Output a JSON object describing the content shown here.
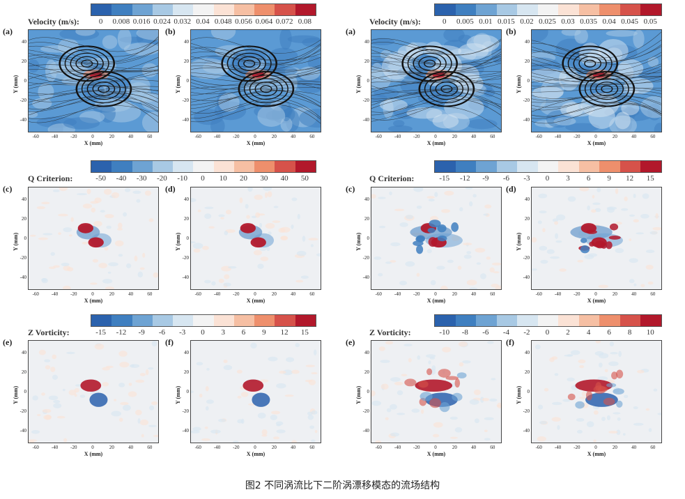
{
  "figure": {
    "caption": "图2  不同涡流比下二阶涡漂移模态的流场结构",
    "axis_x_label": "X (mm)",
    "axis_y_label": "Y (mm)"
  },
  "colors": {
    "scale": [
      "#2b62ad",
      "#3f7fc0",
      "#6ea3d3",
      "#a8c9e4",
      "#d7e6f1",
      "#f3f3f3",
      "#fbe2d5",
      "#f6bfa3",
      "#ee8f6c",
      "#d6524a",
      "#b2182b"
    ],
    "background_blue": "#5b9ad4",
    "neutral_bg": "#eef0f3"
  },
  "groups": [
    {
      "id": "left",
      "colorbars": [
        {
          "label": "Velocity (m/s):",
          "ticks": [
            "0",
            "0.008",
            "0.016",
            "0.024",
            "0.032",
            "0.04",
            "0.048",
            "0.056",
            "0.064",
            "0.072",
            "0.08"
          ]
        },
        {
          "label": "Q Criterion:",
          "ticks": [
            "-50",
            "-40",
            "-30",
            "-20",
            "-10",
            "0",
            "10",
            "20",
            "30",
            "40",
            "50"
          ]
        },
        {
          "label": "Z Vorticity:",
          "ticks": [
            "-15",
            "-12",
            "-9",
            "-6",
            "-3",
            "0",
            "3",
            "6",
            "9",
            "12",
            "15"
          ]
        }
      ],
      "panels": [
        {
          "tag": "(a)",
          "kind": "velocity",
          "yticks": [
            "40",
            "20",
            "0",
            "-20",
            "-40"
          ],
          "xticks": [
            "-60",
            "-40",
            "-20",
            "0",
            "20",
            "40",
            "60"
          ]
        },
        {
          "tag": "(b)",
          "kind": "velocity",
          "yticks": [
            "40",
            "20",
            "0",
            "-20",
            "-40"
          ],
          "xticks": [
            "-60",
            "-40",
            "-20",
            "0",
            "20",
            "40",
            "60"
          ]
        },
        {
          "tag": "(c)",
          "kind": "q",
          "yticks": [
            "40",
            "20",
            "0",
            "-20",
            "-40"
          ],
          "xticks": [
            "-60",
            "-40",
            "-20",
            "0",
            "20",
            "40",
            "60"
          ]
        },
        {
          "tag": "(d)",
          "kind": "q",
          "yticks": [
            "40",
            "20",
            "0",
            "-20",
            "-40"
          ],
          "xticks": [
            "-60",
            "-40",
            "-20",
            "0",
            "20",
            "40",
            "60"
          ]
        },
        {
          "tag": "(e)",
          "kind": "vort",
          "yticks": [
            "40",
            "20",
            "0",
            "-20",
            "-40"
          ],
          "xticks": [
            "-60",
            "-40",
            "-20",
            "0",
            "20",
            "40",
            "60"
          ]
        },
        {
          "tag": "(f)",
          "kind": "vort",
          "yticks": [
            "40",
            "20",
            "0",
            "-20",
            "-40"
          ],
          "xticks": [
            "-60",
            "-40",
            "-20",
            "0",
            "20",
            "40",
            "60"
          ]
        }
      ]
    },
    {
      "id": "right",
      "colorbars": [
        {
          "label": "Velocity (m/s):",
          "ticks": [
            "0",
            "0.005",
            "0.01",
            "0.015",
            "0.02",
            "0.025",
            "0.03",
            "0.035",
            "0.04",
            "0.045",
            "0.05"
          ]
        },
        {
          "label": "Q Criterion:",
          "ticks": [
            "-15",
            "-12",
            "-9",
            "-6",
            "-3",
            "0",
            "3",
            "6",
            "9",
            "12",
            "15"
          ]
        },
        {
          "label": "Z Vorticity:",
          "ticks": [
            "-10",
            "-8",
            "-6",
            "-4",
            "-2",
            "0",
            "2",
            "4",
            "6",
            "8",
            "10"
          ]
        }
      ],
      "panels": [
        {
          "tag": "(a)",
          "kind": "velocity",
          "yticks": [
            "40",
            "20",
            "0",
            "-20",
            "-40"
          ],
          "xticks": [
            "-60",
            "-40",
            "-20",
            "0",
            "20",
            "40",
            "60"
          ]
        },
        {
          "tag": "(b)",
          "kind": "velocity",
          "yticks": [
            "40",
            "20",
            "0",
            "-20",
            "-40"
          ],
          "xticks": [
            "-60",
            "-40",
            "-20",
            "0",
            "20",
            "40",
            "60"
          ]
        },
        {
          "tag": "(c)",
          "kind": "q",
          "yticks": [
            "40",
            "20",
            "0",
            "-20",
            "-40"
          ],
          "xticks": [
            "-60",
            "-40",
            "-20",
            "0",
            "20",
            "40",
            "60"
          ]
        },
        {
          "tag": "(d)",
          "kind": "q",
          "yticks": [
            "40",
            "20",
            "0",
            "-20",
            "-40"
          ],
          "xticks": [
            "-60",
            "-40",
            "-20",
            "0",
            "20",
            "40",
            "60"
          ]
        },
        {
          "tag": "(e)",
          "kind": "vort",
          "yticks": [
            "40",
            "20",
            "0",
            "-20",
            "-40"
          ],
          "xticks": [
            "-60",
            "-40",
            "-20",
            "0",
            "20",
            "40",
            "60"
          ]
        },
        {
          "tag": "(f)",
          "kind": "vort",
          "yticks": [
            "40",
            "20",
            "0",
            "-20",
            "-40"
          ],
          "xticks": [
            "-60",
            "-40",
            "-20",
            "0",
            "20",
            "40",
            "60"
          ]
        }
      ]
    }
  ]
}
